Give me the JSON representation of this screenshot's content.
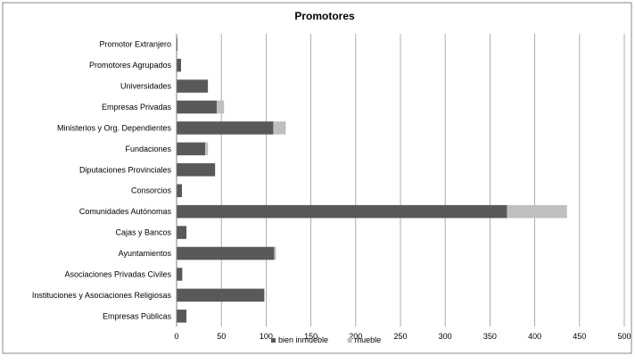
{
  "chart_data": {
    "type": "bar",
    "orientation": "horizontal",
    "stacked": true,
    "title": "Promotores",
    "xlabel": "",
    "ylabel": "",
    "xlim": [
      0,
      500
    ],
    "xticks": [
      "0",
      "50",
      "100",
      "150",
      "200",
      "250",
      "300",
      "350",
      "400",
      "450",
      "500"
    ],
    "grid": true,
    "legend_position": "bottom",
    "categories": [
      "Promotor Extranjero",
      "Promotores Agrupados",
      "Universidades",
      "Empresas Privadas",
      "Ministerios y Org. Dependientes",
      "Fundaciones",
      "Diputaciones Provinciales",
      "Consorcios",
      "Comunidades Autónomas",
      "Cajas y Bancos",
      "Ayuntamientos",
      "Asociaciones Privadas Civiles",
      "Instituciones y Asociaciones Religiosas",
      "Empresas Públicas"
    ],
    "series": [
      {
        "name": "bien inmueble",
        "color": "#595959",
        "values": [
          1,
          5,
          35,
          45,
          108,
          32,
          43,
          6,
          369,
          11,
          109,
          6,
          98,
          11
        ]
      },
      {
        "name": "mueble",
        "color": "#bfbfbf",
        "values": [
          0,
          0,
          0,
          8,
          14,
          3,
          0,
          0,
          67,
          0,
          2,
          1,
          0,
          0
        ]
      }
    ]
  }
}
